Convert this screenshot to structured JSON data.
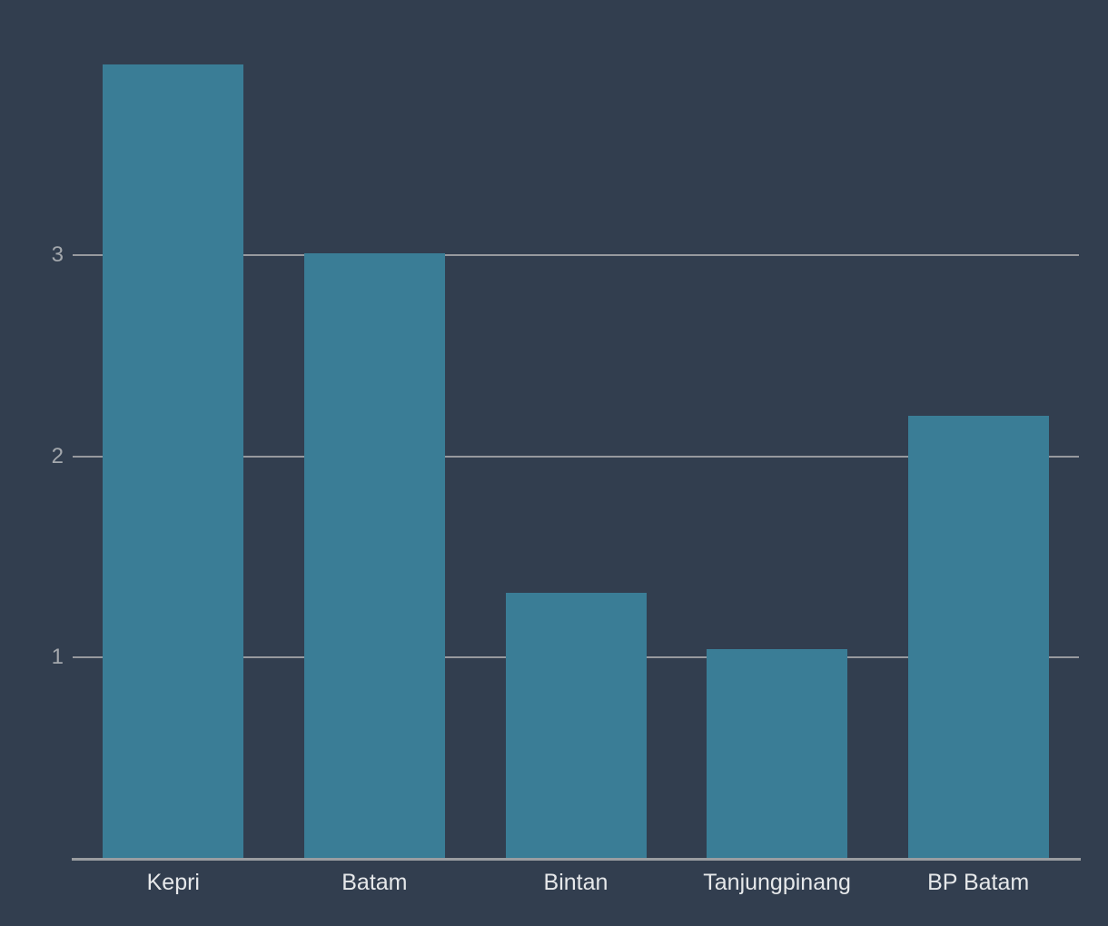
{
  "chart_data": {
    "type": "bar",
    "categories": [
      "Kepri",
      "Batam",
      "Bintan",
      "Tanjungpinang",
      "BP Batam"
    ],
    "values": [
      3.95,
      3.01,
      1.32,
      1.04,
      2.2
    ],
    "title": "",
    "xlabel": "",
    "ylabel": "",
    "ylim": [
      0,
      4
    ],
    "yticks": [
      1,
      2,
      3
    ],
    "grid": true,
    "legend": false,
    "colors": {
      "background": "#323e4f",
      "bar": "#3a7d96",
      "gridline": "#97999e",
      "axis_line": "#9a9da1",
      "tick_label": "#a4a8ad",
      "category_label": "#e6e8ea"
    }
  }
}
